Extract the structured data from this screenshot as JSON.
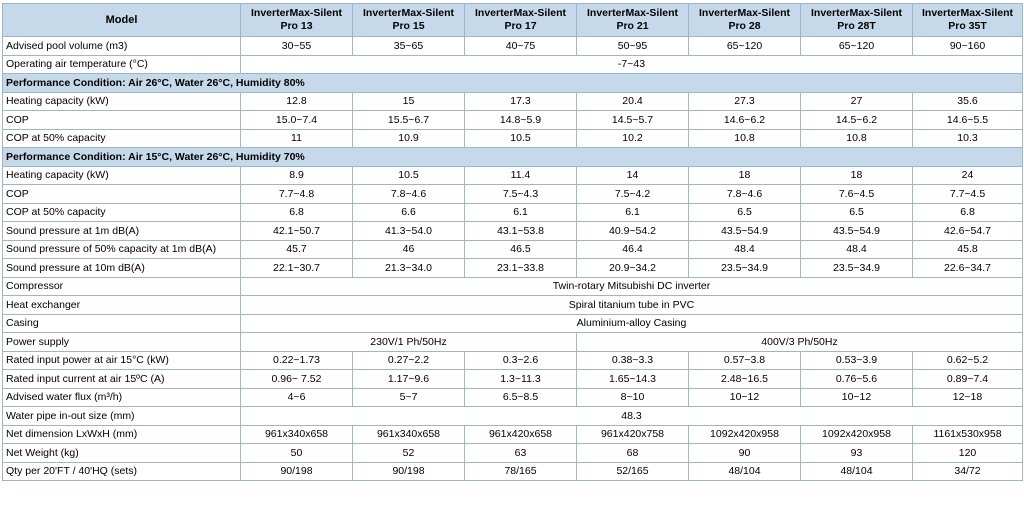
{
  "table": {
    "header": {
      "label": "Model",
      "models": [
        "InverterMax-Silent Pro 13",
        "InverterMax-Silent Pro 15",
        "InverterMax-Silent Pro 17",
        "InverterMax-Silent Pro 21",
        "InverterMax-Silent Pro 28",
        "InverterMax-Silent Pro 28T",
        "InverterMax-Silent Pro 35T"
      ]
    },
    "rows": [
      {
        "type": "data",
        "label": "Advised pool volume  (m3)",
        "values": [
          "30~55",
          "35~65",
          "40~75",
          "50~95",
          "65~120",
          "65~120",
          "90~160"
        ]
      },
      {
        "type": "span",
        "label": "Operating air temperature (°C)",
        "value": "-7~43"
      },
      {
        "type": "section",
        "label": "Performance Condition: Air 26°C, Water 26°C, Humidity 80%"
      },
      {
        "type": "data",
        "label": "Heating capacity  (kW)",
        "values": [
          "12.8",
          "15",
          "17.3",
          "20.4",
          "27.3",
          "27",
          "35.6"
        ]
      },
      {
        "type": "data",
        "label": "COP",
        "values": [
          "15.0~7.4",
          "15.5~6.7",
          "14.8~5.9",
          "14.5~5.7",
          "14.6~6.2",
          "14.5~6.2",
          "14.6~5.5"
        ]
      },
      {
        "type": "data",
        "label": "COP at 50% capacity",
        "values": [
          "11",
          "10.9",
          "10.5",
          "10.2",
          "10.8",
          "10.8",
          "10.3"
        ]
      },
      {
        "type": "section",
        "label": "Performance Condition: Air 15°C, Water 26°C, Humidity 70%"
      },
      {
        "type": "data",
        "label": "Heating capacity  (kW)",
        "values": [
          "8.9",
          "10.5",
          "11.4",
          "14",
          "18",
          "18",
          "24"
        ]
      },
      {
        "type": "data",
        "label": "COP",
        "values": [
          "7.7~4.8",
          "7.8~4.6",
          "7.5~4.3",
          "7.5~4.2",
          "7.8~4.6",
          "7.6~4.5",
          "7.7~4.5"
        ]
      },
      {
        "type": "data",
        "label": "COP at 50% capacity",
        "values": [
          "6.8",
          "6.6",
          "6.1",
          "6.1",
          "6.5",
          "6.5",
          "6.8"
        ]
      },
      {
        "type": "data",
        "label": "Sound pressure at 1m  dB(A)",
        "values": [
          "42.1~50.7",
          "41.3~54.0",
          "43.1~53.8",
          "40.9~54.2",
          "43.5~54.9",
          "43.5~54.9",
          "42.6~54.7"
        ]
      },
      {
        "type": "data",
        "label": "Sound pressure of 50% capacity at 1m dB(A)",
        "values": [
          "45.7",
          "46",
          "46.5",
          "46.4",
          "48.4",
          "48.4",
          "45.8"
        ]
      },
      {
        "type": "data",
        "label": "Sound pressure at 10m dB(A)",
        "values": [
          "22.1~30.7",
          "21.3~34.0",
          "23.1~33.8",
          "20.9~34.2",
          "23.5~34.9",
          "23.5~34.9",
          "22.6~34.7"
        ]
      },
      {
        "type": "span",
        "label": "Compressor",
        "value": "Twin-rotary Mitsubishi DC inverter"
      },
      {
        "type": "span",
        "label": "Heat exchanger",
        "value": "Spiral titanium tube in PVC"
      },
      {
        "type": "span",
        "label": "Casing",
        "value": "Aluminium-alloy Casing"
      },
      {
        "type": "split",
        "label": "Power supply",
        "left": "230V/1  Ph/50Hz",
        "right": "400V/3 Ph/50Hz"
      },
      {
        "type": "data",
        "label": "Rated input power  at air 15°C (kW)",
        "values": [
          "0.22~1.73",
          "0.27~2.2",
          "0.3~2.6",
          "0.38~3.3",
          "0.57~3.8",
          "0.53~3.9",
          "0.62~5.2"
        ]
      },
      {
        "type": "data",
        "label": "Rated input current at air 15ºC  (A)",
        "values": [
          "0.96~ 7.52",
          "1.17~9.6",
          "1.3~11.3",
          "1.65~14.3",
          "2.48~16.5",
          "0.76~5.6",
          "0.89~7.4"
        ]
      },
      {
        "type": "data",
        "label": "Advised water flux   (m³/h)",
        "values": [
          "4~6",
          "5~7",
          "6.5~8.5",
          "8~10",
          "10~12",
          "10~12",
          "12~18"
        ]
      },
      {
        "type": "span",
        "label": "Water pipe in-out size (mm)",
        "value": "48.3"
      },
      {
        "type": "data",
        "label": "Net dimension  LxWxH (mm)",
        "values": [
          "961x340x658",
          "961x340x658",
          "961x420x658",
          "961x420x758",
          "1092x420x958",
          "1092x420x958",
          "1161x530x958"
        ]
      },
      {
        "type": "data",
        "label": "Net Weight (kg)",
        "values": [
          "50",
          "52",
          "63",
          "68",
          "90",
          "93",
          "120"
        ]
      },
      {
        "type": "data",
        "label": "Qty per 20'FT / 40'HQ (sets)",
        "values": [
          "90/198",
          "90/198",
          "78/165",
          "52/165",
          "48/104",
          "48/104",
          "34/72"
        ]
      }
    ]
  }
}
